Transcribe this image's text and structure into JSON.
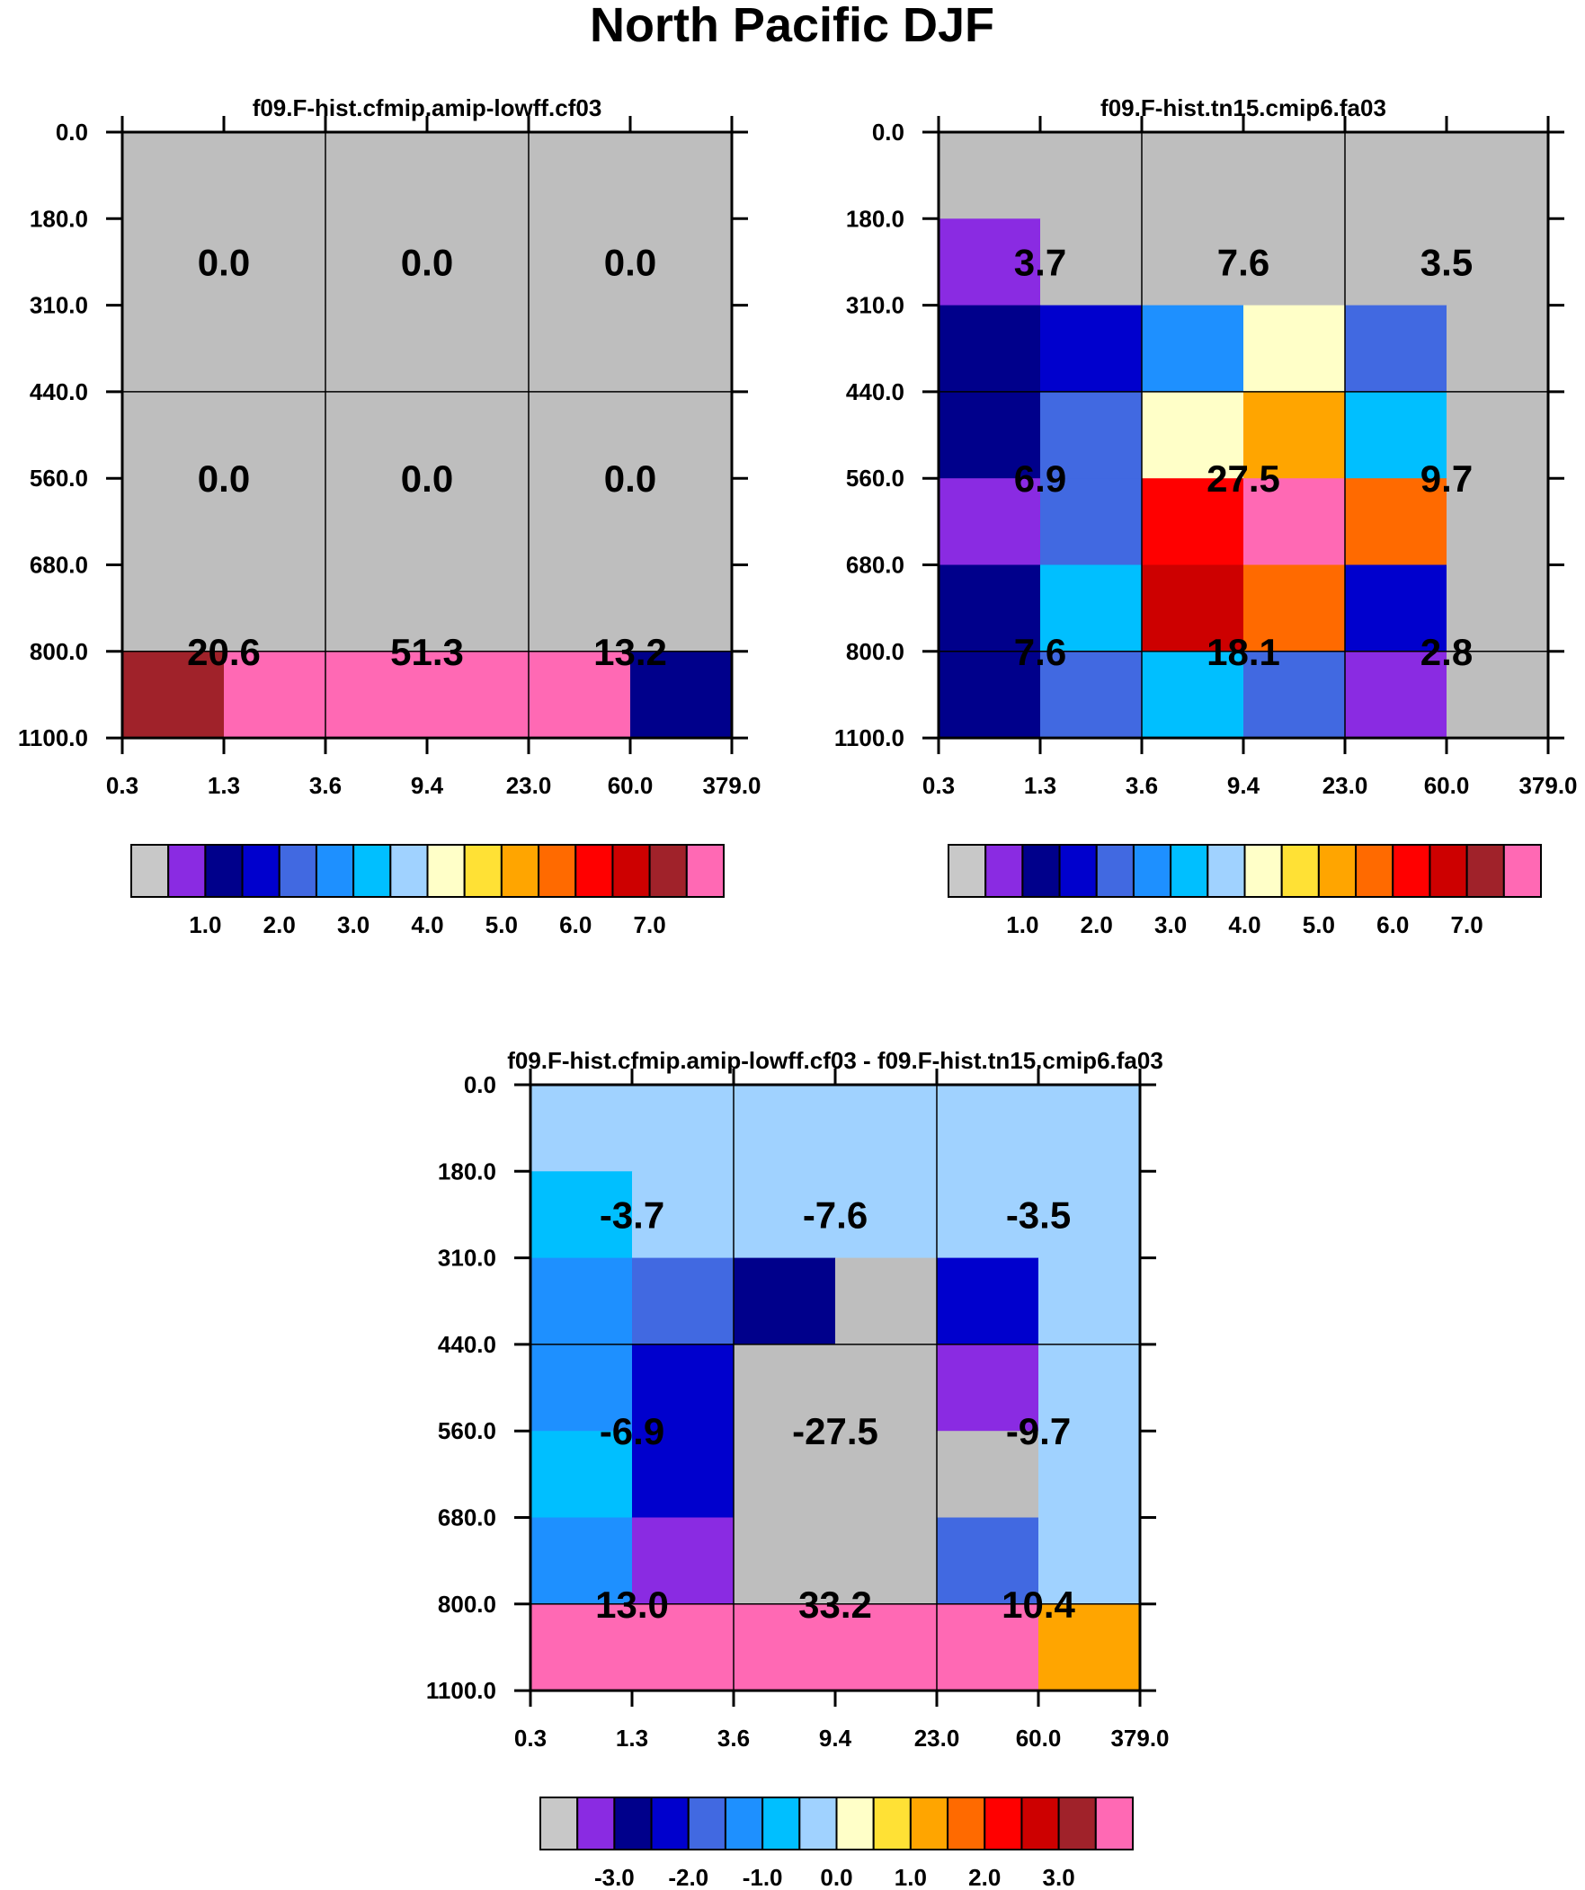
{
  "figure": {
    "title": "North Pacific DJF"
  },
  "chart_data": [
    {
      "type": "heatmap",
      "title": "f09.F-hist.cfmip.amip-lowff.cf03",
      "x_edges": [
        0.3,
        1.3,
        3.6,
        9.4,
        23.0,
        60.0,
        379.0
      ],
      "y_edges": [
        0.0,
        180.0,
        310.0,
        440.0,
        560.0,
        680.0,
        800.0,
        1100.0
      ],
      "x_tick_labels": [
        "0.3",
        "1.3",
        "3.6",
        "9.4",
        "23.0",
        "60.0",
        "379.0"
      ],
      "y_tick_labels": [
        "0.0",
        "180.0",
        "310.0",
        "440.0",
        "560.0",
        "680.0",
        "800.0",
        "1100.0"
      ],
      "cell_colors": [
        [
          "#bebebe",
          "#bebebe",
          "#bebebe",
          "#bebebe",
          "#bebebe",
          "#bebebe"
        ],
        [
          "#bebebe",
          "#bebebe",
          "#bebebe",
          "#bebebe",
          "#bebebe",
          "#bebebe"
        ],
        [
          "#bebebe",
          "#bebebe",
          "#bebebe",
          "#bebebe",
          "#bebebe",
          "#bebebe"
        ],
        [
          "#bebebe",
          "#bebebe",
          "#bebebe",
          "#bebebe",
          "#bebebe",
          "#bebebe"
        ],
        [
          "#bebebe",
          "#bebebe",
          "#bebebe",
          "#bebebe",
          "#bebebe",
          "#bebebe"
        ],
        [
          "#bebebe",
          "#bebebe",
          "#bebebe",
          "#bebebe",
          "#bebebe",
          "#bebebe"
        ],
        [
          "#a0222a",
          "#ff69b4",
          "#ff69b4",
          "#ff69b4",
          "#ff69b4",
          "#00008b"
        ]
      ],
      "block_values": [
        [
          "0.0",
          "0.0",
          "0.0"
        ],
        [
          "0.0",
          "0.0",
          "0.0"
        ],
        [
          "20.6",
          "51.3",
          "13.2"
        ]
      ],
      "colorbar": {
        "colors": [
          "#c8c8c8",
          "#8a2be2",
          "#00008b",
          "#0000cd",
          "#4169e1",
          "#1e90ff",
          "#00bfff",
          "#a0d2ff",
          "#ffffc8",
          "#ffe135",
          "#ffa500",
          "#ff6a00",
          "#ff0000",
          "#cd0000",
          "#a0222a",
          "#ff69b4"
        ],
        "tick_labels": [
          "1.0",
          "2.0",
          "3.0",
          "4.0",
          "5.0",
          "6.0",
          "7.0"
        ]
      }
    },
    {
      "type": "heatmap",
      "title": "f09.F-hist.tn15.cmip6.fa03",
      "x_edges": [
        0.3,
        1.3,
        3.6,
        9.4,
        23.0,
        60.0,
        379.0
      ],
      "y_edges": [
        0.0,
        180.0,
        310.0,
        440.0,
        560.0,
        680.0,
        800.0,
        1100.0
      ],
      "x_tick_labels": [
        "0.3",
        "1.3",
        "3.6",
        "9.4",
        "23.0",
        "60.0",
        "379.0"
      ],
      "y_tick_labels": [
        "0.0",
        "180.0",
        "310.0",
        "440.0",
        "560.0",
        "680.0",
        "800.0",
        "1100.0"
      ],
      "cell_colors": [
        [
          "#bebebe",
          "#bebebe",
          "#bebebe",
          "#bebebe",
          "#bebebe",
          "#bebebe"
        ],
        [
          "#8a2be2",
          "#bebebe",
          "#bebebe",
          "#bebebe",
          "#bebebe",
          "#bebebe"
        ],
        [
          "#00008b",
          "#0000cd",
          "#1e90ff",
          "#ffffc8",
          "#4169e1",
          "#bebebe"
        ],
        [
          "#00008b",
          "#4169e1",
          "#ffffc8",
          "#ffa500",
          "#00bfff",
          "#bebebe"
        ],
        [
          "#8a2be2",
          "#4169e1",
          "#ff0000",
          "#ff69b4",
          "#ff6a00",
          "#bebebe"
        ],
        [
          "#00008b",
          "#00bfff",
          "#cd0000",
          "#ff6a00",
          "#0000cd",
          "#bebebe"
        ],
        [
          "#00008b",
          "#4169e1",
          "#00bfff",
          "#4169e1",
          "#8a2be2",
          "#bebebe"
        ]
      ],
      "block_values": [
        [
          "3.7",
          "7.6",
          "3.5"
        ],
        [
          "6.9",
          "27.5",
          "9.7"
        ],
        [
          "7.6",
          "18.1",
          "2.8"
        ]
      ],
      "colorbar": {
        "colors": [
          "#c8c8c8",
          "#8a2be2",
          "#00008b",
          "#0000cd",
          "#4169e1",
          "#1e90ff",
          "#00bfff",
          "#a0d2ff",
          "#ffffc8",
          "#ffe135",
          "#ffa500",
          "#ff6a00",
          "#ff0000",
          "#cd0000",
          "#a0222a",
          "#ff69b4"
        ],
        "tick_labels": [
          "1.0",
          "2.0",
          "3.0",
          "4.0",
          "5.0",
          "6.0",
          "7.0"
        ]
      }
    },
    {
      "type": "heatmap",
      "title": "f09.F-hist.cfmip.amip-lowff.cf03 - f09.F-hist.tn15.cmip6.fa03",
      "x_edges": [
        0.3,
        1.3,
        3.6,
        9.4,
        23.0,
        60.0,
        379.0
      ],
      "y_edges": [
        0.0,
        180.0,
        310.0,
        440.0,
        560.0,
        680.0,
        800.0,
        1100.0
      ],
      "x_tick_labels": [
        "0.3",
        "1.3",
        "3.6",
        "9.4",
        "23.0",
        "60.0",
        "379.0"
      ],
      "y_tick_labels": [
        "0.0",
        "180.0",
        "310.0",
        "440.0",
        "560.0",
        "680.0",
        "800.0",
        "1100.0"
      ],
      "cell_colors": [
        [
          "#a0d2ff",
          "#a0d2ff",
          "#a0d2ff",
          "#a0d2ff",
          "#a0d2ff",
          "#a0d2ff"
        ],
        [
          "#00bfff",
          "#a0d2ff",
          "#a0d2ff",
          "#a0d2ff",
          "#a0d2ff",
          "#a0d2ff"
        ],
        [
          "#1e90ff",
          "#4169e1",
          "#00008b",
          "#bebebe",
          "#0000cd",
          "#a0d2ff"
        ],
        [
          "#1e90ff",
          "#0000cd",
          "#bebebe",
          "#bebebe",
          "#8a2be2",
          "#a0d2ff"
        ],
        [
          "#00bfff",
          "#0000cd",
          "#bebebe",
          "#bebebe",
          "#bebebe",
          "#a0d2ff"
        ],
        [
          "#1e90ff",
          "#8a2be2",
          "#bebebe",
          "#bebebe",
          "#4169e1",
          "#a0d2ff"
        ],
        [
          "#ff69b4",
          "#ff69b4",
          "#ff69b4",
          "#ff69b4",
          "#ff69b4",
          "#ffa500"
        ]
      ],
      "block_values": [
        [
          "-3.7",
          "-7.6",
          "-3.5"
        ],
        [
          "-6.9",
          "-27.5",
          "-9.7"
        ],
        [
          "13.0",
          "33.2",
          "10.4"
        ]
      ],
      "colorbar": {
        "colors": [
          "#c8c8c8",
          "#8a2be2",
          "#00008b",
          "#0000cd",
          "#4169e1",
          "#1e90ff",
          "#00bfff",
          "#a0d2ff",
          "#ffffc8",
          "#ffe135",
          "#ffa500",
          "#ff6a00",
          "#ff0000",
          "#cd0000",
          "#a0222a",
          "#ff69b4"
        ],
        "tick_labels": [
          "-3.0",
          "-2.0",
          "-1.0",
          "0.0",
          "1.0",
          "2.0",
          "3.0"
        ]
      }
    }
  ]
}
